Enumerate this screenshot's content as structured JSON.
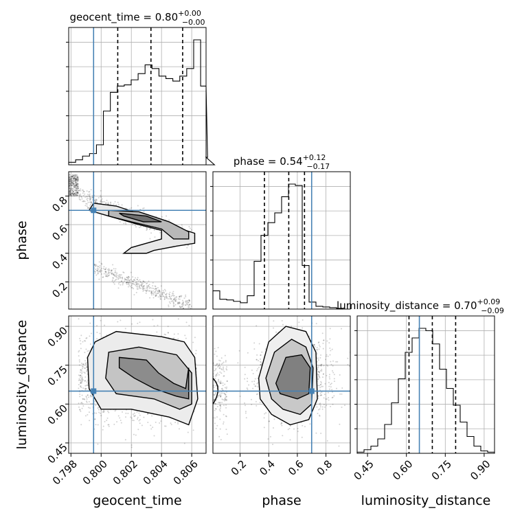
{
  "chart_data": {
    "type": "corner",
    "parameters": [
      "geocent_time",
      "phase",
      "luminosity_distance"
    ],
    "truths": {
      "geocent_time": 0.7995,
      "phase": 0.7,
      "luminosity_distance": 0.65
    },
    "ranges": {
      "geocent_time": [
        0.79785,
        0.80695
      ],
      "phase": [
        0.01,
        0.97
      ],
      "luminosity_distance": [
        0.41,
        0.94
      ]
    },
    "titles": [
      {
        "param": "geocent_time",
        "label": "geocent_time = 0.80",
        "sup": "+0.00",
        "sub": "−0.00"
      },
      {
        "param": "phase",
        "label": "phase = 0.54",
        "sup": "+0.12",
        "sub": "−0.17"
      },
      {
        "param": "luminosity_distance",
        "label": "luminosity_distance = 0.70",
        "sup": "+0.09",
        "sub": "−0.09"
      }
    ],
    "quantiles": {
      "geocent_time": [
        0.8011,
        0.8033,
        0.8054
      ],
      "phase": [
        0.37,
        0.54,
        0.65
      ],
      "luminosity_distance": [
        0.61,
        0.7,
        0.79
      ]
    },
    "ticks": {
      "geocent_time": {
        "values": [
          0.798,
          0.8,
          0.802,
          0.804,
          0.806
        ],
        "labels": [
          "0.798",
          "0.800",
          "0.802",
          "0.804",
          "0.806"
        ]
      },
      "phase_x": {
        "values": [
          0.2,
          0.4,
          0.6,
          0.8
        ],
        "labels": [
          "0.2",
          "0.4",
          "0.6",
          "0.8"
        ]
      },
      "phase_y": {
        "values": [
          0.2,
          0.4,
          0.6,
          0.8
        ],
        "labels": [
          "0.2",
          "0.4",
          "0.6",
          "0.8"
        ]
      },
      "luminosity_distance": {
        "values": [
          0.45,
          0.6,
          0.75,
          0.9
        ],
        "labels": [
          "0.45",
          "0.60",
          "0.75",
          "0.90"
        ]
      }
    },
    "histograms": {
      "geocent_time": {
        "edges_start": 0.79785,
        "bin_width": 0.00046,
        "counts": [
          2,
          4,
          7,
          9,
          16,
          43,
          58,
          63,
          64,
          68,
          73,
          80,
          77,
          71,
          69,
          67,
          71,
          77,
          100,
          63,
          6,
          0
        ]
      },
      "phase": {
        "edges_start": 0.01,
        "bin_width": 0.048,
        "counts": [
          26,
          14,
          13,
          11,
          9,
          19,
          68,
          105,
          123,
          137,
          160,
          178,
          176,
          62,
          10,
          4,
          3,
          2,
          1,
          0
        ]
      },
      "luminosity_distance": {
        "edges_start": 0.41,
        "bin_width": 0.0265,
        "counts": [
          1,
          3,
          6,
          12,
          24,
          42,
          62,
          84,
          96,
          104,
          102,
          91,
          70,
          54,
          40,
          26,
          14,
          6,
          2,
          1
        ]
      }
    },
    "pairs": [
      {
        "x": "geocent_time",
        "y": "phase"
      },
      {
        "x": "geocent_time",
        "y": "luminosity_distance"
      },
      {
        "x": "phase",
        "y": "luminosity_distance"
      }
    ],
    "axis_labels": {
      "x": [
        "geocent_time",
        "phase",
        "luminosity_distance"
      ],
      "y": [
        "phase",
        "luminosity_distance"
      ]
    },
    "colors": {
      "truth": "#4682b4",
      "hist": "#000000",
      "grid": "#b0b0b0",
      "points": "#000000"
    },
    "grid": true
  }
}
